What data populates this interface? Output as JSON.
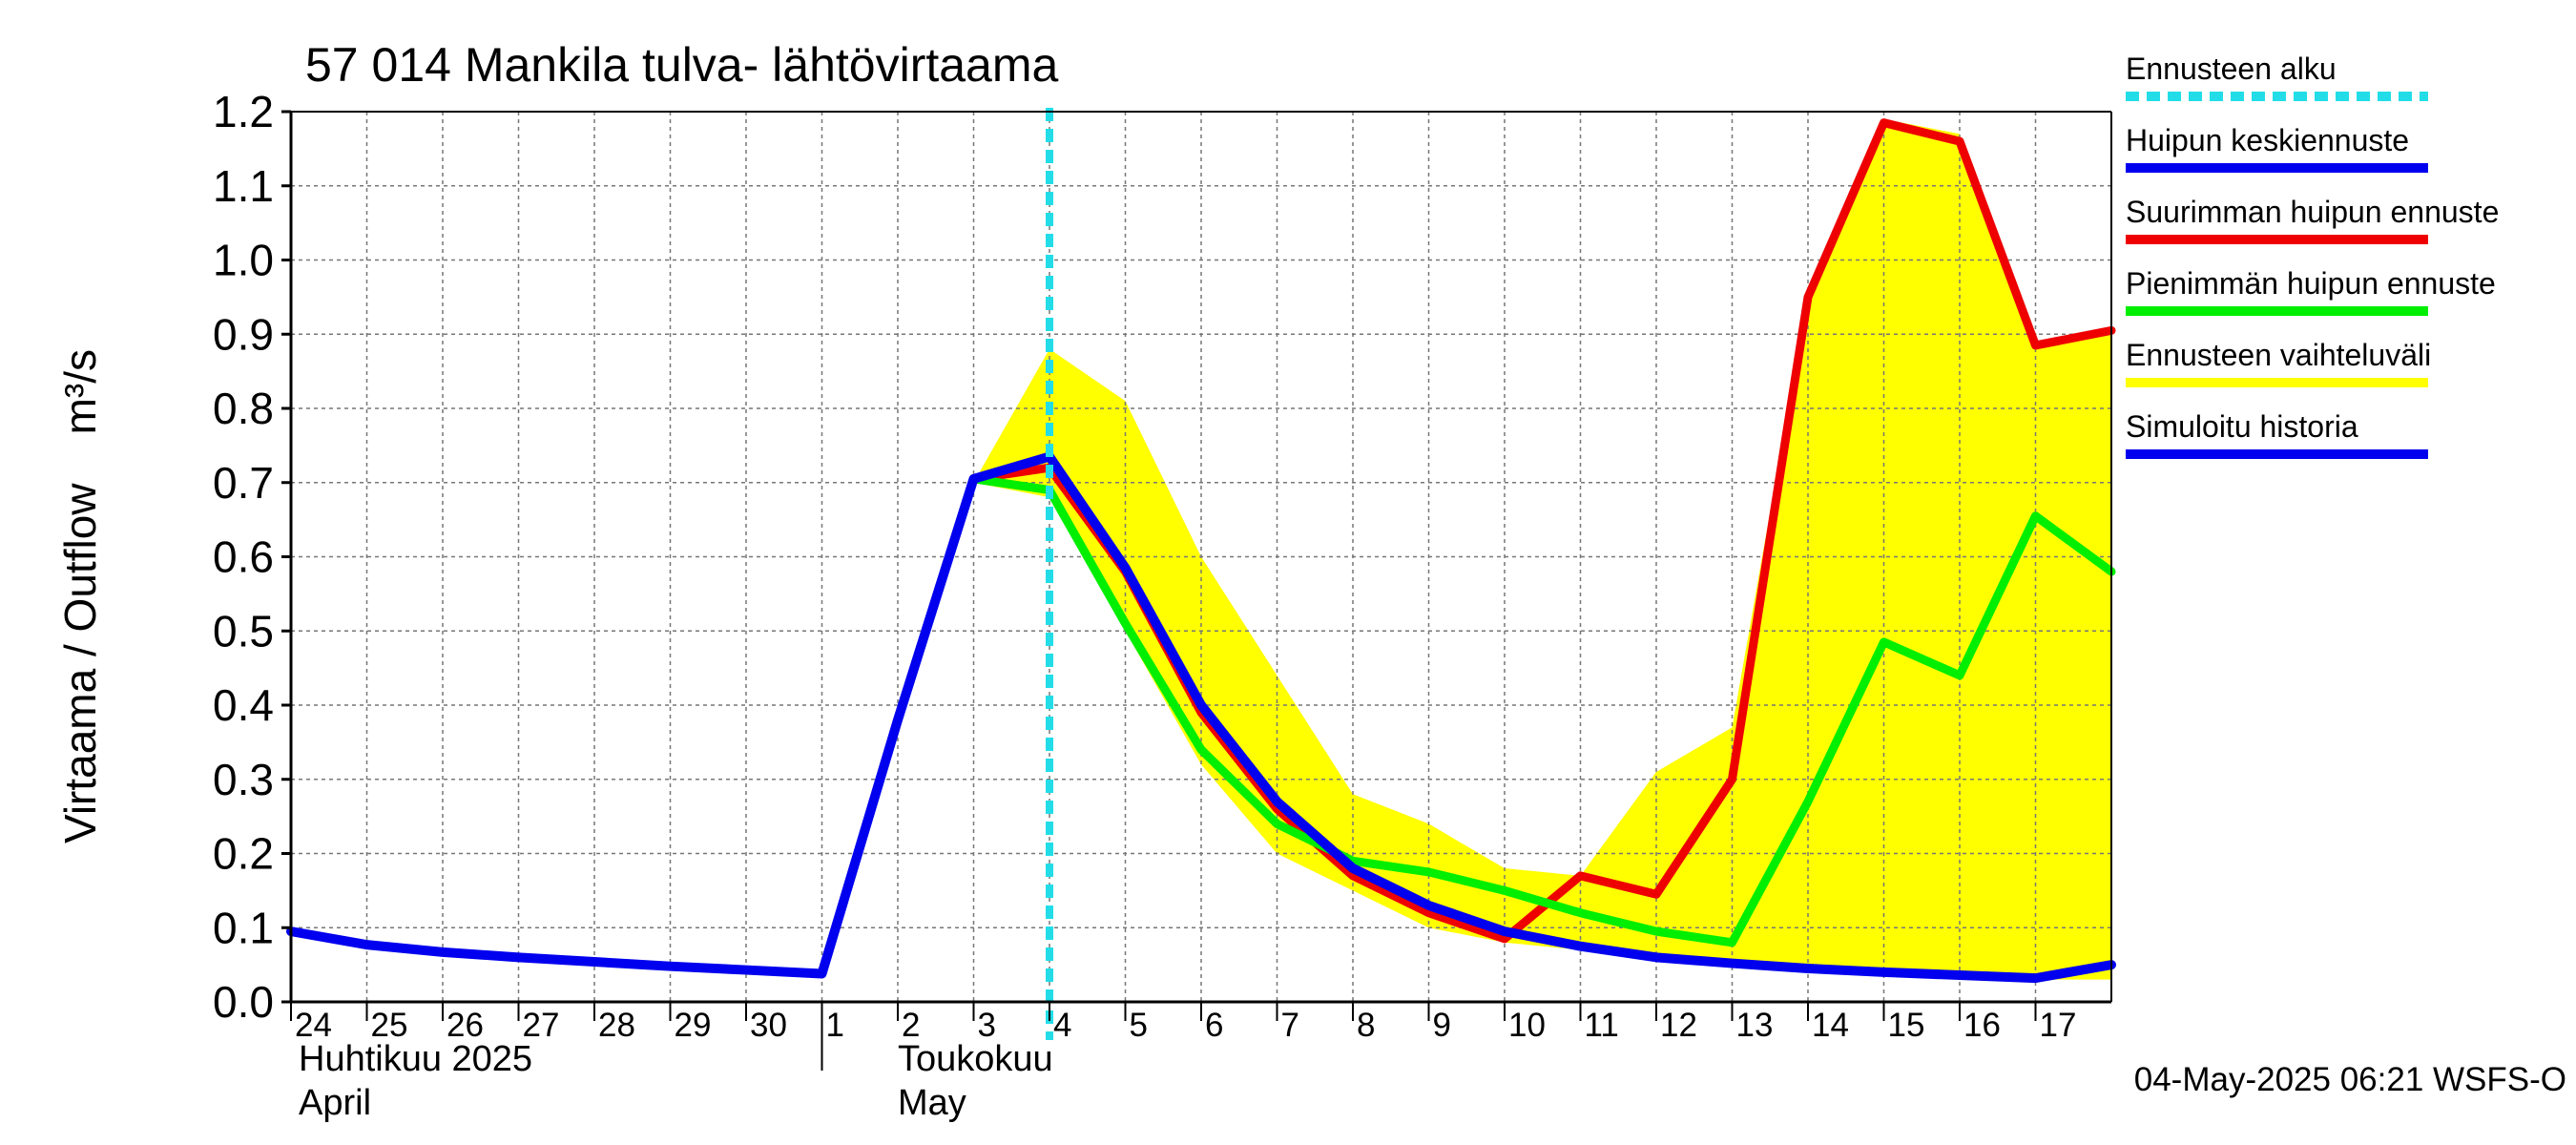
{
  "chart_data": {
    "type": "line",
    "title": "57 014 Mankila tulva- lähtövirtaama",
    "ylabel": "Virtaama / Outflow    m³/s",
    "ylim": [
      0.0,
      1.2
    ],
    "y_ticks": [
      "0.0",
      "0.1",
      "0.2",
      "0.3",
      "0.4",
      "0.5",
      "0.6",
      "0.7",
      "0.8",
      "0.9",
      "1.0",
      "1.1",
      "1.2"
    ],
    "x_range": [
      0,
      24
    ],
    "x_day_labels": [
      "24",
      "25",
      "26",
      "27",
      "28",
      "29",
      "30",
      "1",
      "2",
      "3",
      "4",
      "5",
      "6",
      "7",
      "8",
      "9",
      "10",
      "11",
      "12",
      "13",
      "14",
      "15",
      "16",
      "17"
    ],
    "month_labels": [
      {
        "fi": "Huhtikuu  2025",
        "en": "April"
      },
      {
        "fi": "Toukokuu",
        "en": "May"
      }
    ],
    "forecast_start_x": 10.0,
    "timestamp": "04-May-2025 06:21 WSFS-O",
    "legend": [
      {
        "label": "Ennusteen alku",
        "color": "#22dde8",
        "style": "dashed"
      },
      {
        "label": "Huipun keskiennuste",
        "color": "#0000ee",
        "style": "solid"
      },
      {
        "label": "Suurimman huipun ennuste",
        "color": "#ee0000",
        "style": "solid"
      },
      {
        "label": "Pienimmän huipun ennuste",
        "color": "#00ee00",
        "style": "solid"
      },
      {
        "label": "Ennusteen vaihteluväli",
        "color": "#ffff00",
        "style": "solid"
      },
      {
        "label": "Simuloitu historia",
        "color": "#0000ee",
        "style": "solid"
      }
    ],
    "series": [
      {
        "name": "Ennusteen vaihteluväli (upper)",
        "x": [
          9,
          10,
          11,
          12,
          13,
          14,
          15,
          16,
          17,
          18,
          19,
          20,
          21,
          22,
          23,
          24
        ],
        "values": [
          0.7,
          0.88,
          0.81,
          0.6,
          0.44,
          0.28,
          0.24,
          0.18,
          0.17,
          0.31,
          0.37,
          0.95,
          1.19,
          1.17,
          0.89,
          0.91
        ]
      },
      {
        "name": "Ennusteen vaihteluväli (lower)",
        "x": [
          9,
          10,
          11,
          12,
          13,
          14,
          15,
          16,
          17,
          18,
          19,
          20,
          21,
          22,
          23,
          24
        ],
        "values": [
          0.7,
          0.68,
          0.5,
          0.32,
          0.2,
          0.15,
          0.1,
          0.08,
          0.07,
          0.06,
          0.05,
          0.045,
          0.04,
          0.035,
          0.03,
          0.03
        ]
      },
      {
        "name": "Suurimman huipun ennuste",
        "x": [
          9,
          10,
          11,
          12,
          13,
          14,
          15,
          16,
          17,
          18,
          19,
          20,
          21,
          22,
          23,
          24
        ],
        "values": [
          0.705,
          0.72,
          0.58,
          0.39,
          0.26,
          0.17,
          0.12,
          0.085,
          0.17,
          0.145,
          0.3,
          0.95,
          1.185,
          1.16,
          0.885,
          0.905
        ]
      },
      {
        "name": "Pienimmän huipun ennuste",
        "x": [
          9,
          10,
          11,
          12,
          13,
          14,
          15,
          16,
          17,
          18,
          19,
          20,
          21,
          22,
          23,
          24
        ],
        "values": [
          0.705,
          0.69,
          0.51,
          0.34,
          0.24,
          0.19,
          0.175,
          0.15,
          0.12,
          0.095,
          0.08,
          0.27,
          0.485,
          0.44,
          0.655,
          0.58
        ]
      },
      {
        "name": "Simuloitu historia",
        "x": [
          0,
          1,
          2,
          3,
          4,
          5,
          6,
          7,
          8,
          9,
          10
        ],
        "values": [
          0.095,
          0.077,
          0.067,
          0.06,
          0.054,
          0.048,
          0.043,
          0.038,
          0.38,
          0.705,
          0.735
        ]
      },
      {
        "name": "Huipun keskiennuste",
        "x": [
          10,
          11,
          12,
          13,
          14,
          15,
          16,
          17,
          18,
          19,
          20,
          21,
          22,
          23,
          24
        ],
        "values": [
          0.735,
          0.585,
          0.4,
          0.27,
          0.18,
          0.13,
          0.095,
          0.075,
          0.06,
          0.052,
          0.045,
          0.04,
          0.036,
          0.032,
          0.05
        ]
      }
    ]
  }
}
